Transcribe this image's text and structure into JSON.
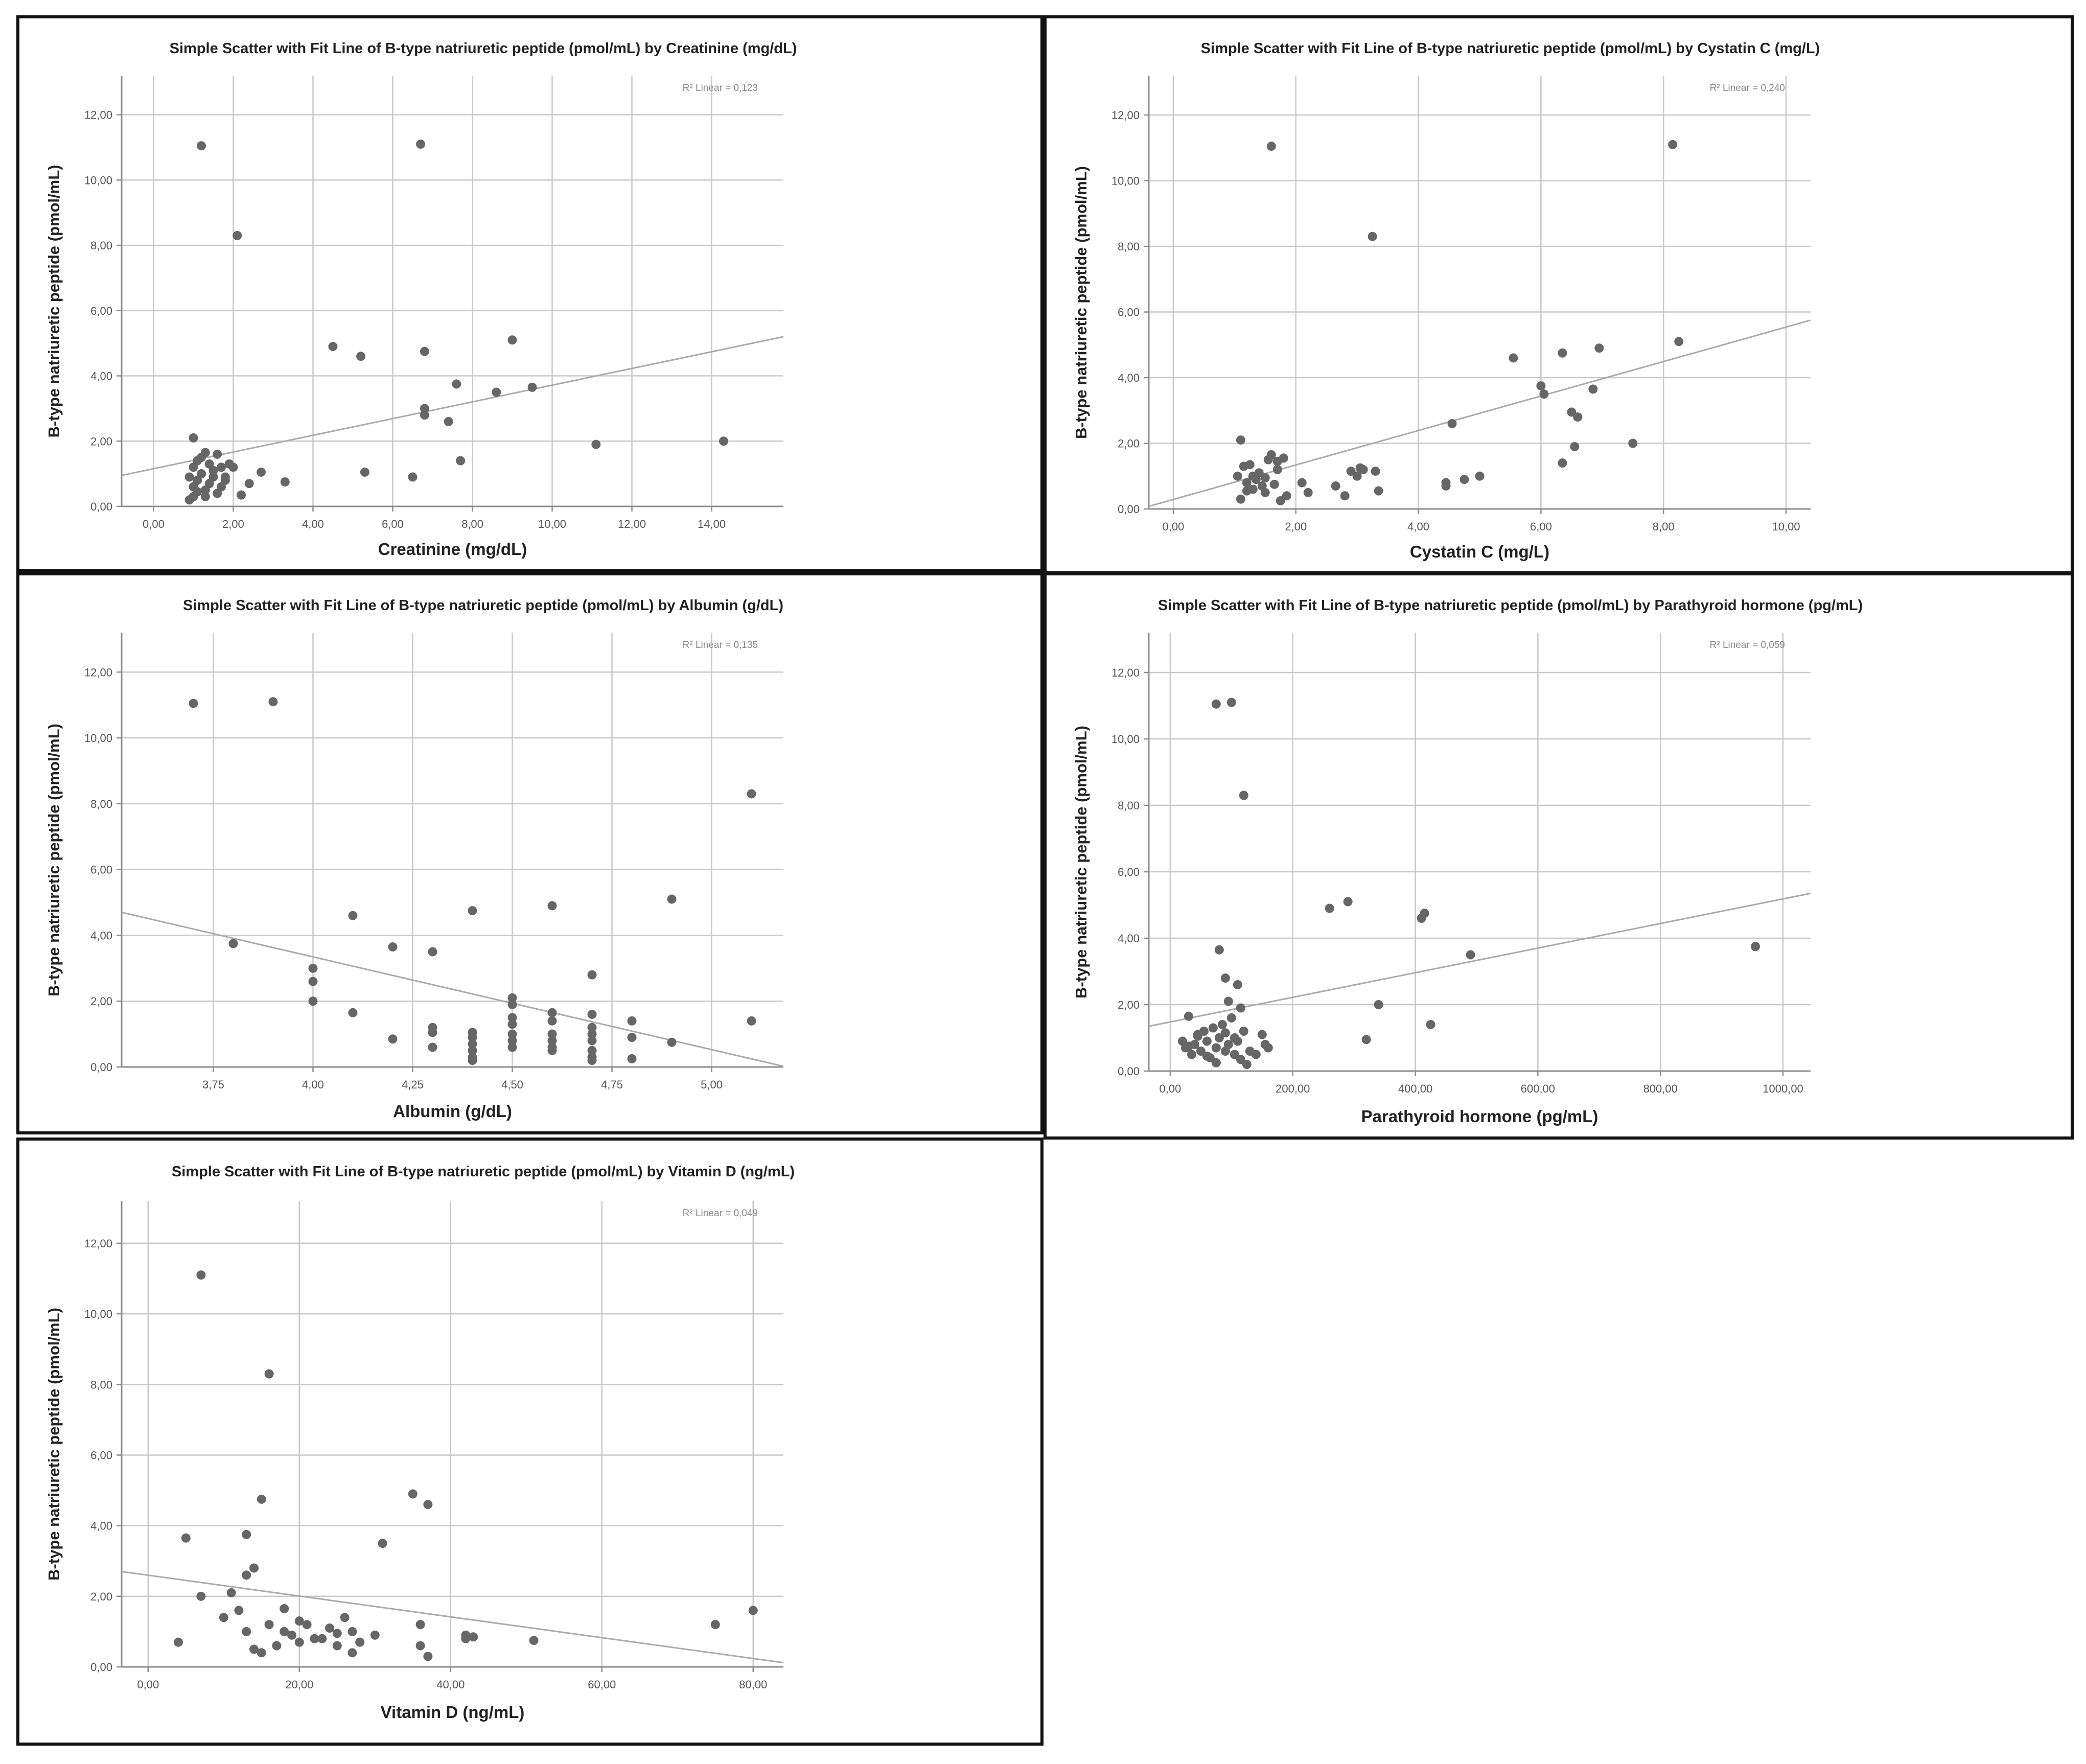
{
  "chart_data": [
    {
      "type": "scatter",
      "title": "Simple Scatter with Fit Line of B-type natriuretic peptide (pmol/mL) by Creatinine (mg/dL)",
      "xlabel": "Creatinine (mg/dL)",
      "ylabel": "B-type natriuretic peptide (pmol/mL)",
      "r2_label": "R² Linear = 0,123",
      "xlim": [
        -0.8,
        15.8
      ],
      "ylim": [
        0,
        13.2
      ],
      "xticks": [
        0,
        2,
        4,
        6,
        8,
        10,
        12,
        14
      ],
      "xtick_labels": [
        "0,00",
        "2,00",
        "4,00",
        "6,00",
        "8,00",
        "10,00",
        "12,00",
        "14,00"
      ],
      "yticks": [
        0,
        2,
        4,
        6,
        8,
        10,
        12
      ],
      "ytick_labels": [
        "0,00",
        "2,00",
        "4,00",
        "6,00",
        "8,00",
        "10,00",
        "12,00"
      ],
      "fit_line": [
        [
          -0.8,
          0.95
        ],
        [
          15.8,
          5.2
        ]
      ],
      "x": [
        1.2,
        2.1,
        6.7,
        1.0,
        4.5,
        5.2,
        6.8,
        9.0,
        7.6,
        6.8,
        6.8,
        8.6,
        9.5,
        7.4,
        7.7,
        5.3,
        6.5,
        11.1,
        14.3,
        2.0,
        2.2,
        2.4,
        2.7,
        3.3,
        0.9,
        1.0,
        1.1,
        1.2,
        1.3,
        1.4,
        1.5,
        1.6,
        1.7,
        1.8,
        1.9,
        1.0,
        1.1,
        1.2,
        1.3,
        1.4,
        1.5,
        1.6,
        1.7,
        1.8,
        0.9,
        1.0,
        1.1,
        1.2,
        1.3
      ],
      "y": [
        11.05,
        8.3,
        11.1,
        2.1,
        4.9,
        4.6,
        4.75,
        5.1,
        3.75,
        3.0,
        2.8,
        3.5,
        3.65,
        2.6,
        1.4,
        1.05,
        0.9,
        1.9,
        2.0,
        1.2,
        0.35,
        0.7,
        1.05,
        0.75,
        0.9,
        1.2,
        1.4,
        1.5,
        1.65,
        1.3,
        1.1,
        1.6,
        1.2,
        0.9,
        1.3,
        0.6,
        0.8,
        1.0,
        0.5,
        0.7,
        0.9,
        0.4,
        0.6,
        0.8,
        0.2,
        0.3,
        0.45,
        1.0,
        0.3
      ]
    },
    {
      "type": "scatter",
      "title": "Simple Scatter with Fit Line of B-type natriuretic peptide (pmol/mL) by Cystatin C (mg/L)",
      "xlabel": "Cystatin C (mg/L)",
      "ylabel": "B-type natriuretic peptide (pmol/mL)",
      "r2_label": "R² Linear = 0,240",
      "xlim": [
        -0.4,
        10.4
      ],
      "ylim": [
        0,
        13.2
      ],
      "xticks": [
        0,
        2,
        4,
        6,
        8,
        10
      ],
      "xtick_labels": [
        "0,00",
        "2,00",
        "4,00",
        "6,00",
        "8,00",
        "10,00"
      ],
      "yticks": [
        0,
        2,
        4,
        6,
        8,
        10,
        12
      ],
      "ytick_labels": [
        "0,00",
        "2,00",
        "4,00",
        "6,00",
        "8,00",
        "10,00",
        "12,00"
      ],
      "fit_line": [
        [
          -0.4,
          0.08
        ],
        [
          10.4,
          5.75
        ]
      ],
      "x": [
        1.6,
        8.15,
        3.25,
        5.55,
        6.35,
        6.95,
        8.25,
        6.0,
        6.05,
        6.85,
        6.6,
        6.5,
        7.5,
        6.55,
        6.35,
        4.55,
        4.45,
        4.45,
        4.75,
        5.0,
        1.1,
        1.05,
        1.15,
        1.2,
        1.25,
        1.3,
        1.35,
        1.4,
        1.45,
        1.5,
        1.55,
        1.6,
        1.65,
        1.7,
        1.75,
        1.8,
        1.85,
        1.1,
        1.3,
        1.5,
        1.7,
        1.2,
        2.1,
        2.2,
        2.65,
        2.8,
        2.9,
        3.0,
        3.05,
        3.1,
        3.3,
        3.35
      ],
      "y": [
        11.05,
        11.1,
        8.3,
        4.6,
        4.75,
        4.9,
        5.1,
        3.75,
        3.5,
        3.65,
        2.8,
        2.95,
        2.0,
        1.9,
        1.4,
        2.6,
        0.7,
        0.8,
        0.9,
        1.0,
        2.1,
        1.0,
        1.3,
        0.8,
        1.35,
        0.6,
        0.9,
        1.1,
        0.7,
        0.95,
        1.5,
        1.65,
        0.75,
        1.2,
        0.25,
        1.55,
        0.4,
        0.3,
        1.0,
        0.5,
        1.45,
        0.55,
        0.8,
        0.5,
        0.7,
        0.4,
        1.15,
        1.0,
        1.25,
        1.2,
        1.15,
        0.55
      ]
    },
    {
      "type": "scatter",
      "title": "Simple Scatter with Fit Line of B-type natriuretic peptide (pmol/mL) by Albumin (g/dL)",
      "xlabel": "Albumin (g/dL)",
      "ylabel": "B-type natriuretic peptide (pmol/mL)",
      "r2_label": "R² Linear = 0,135",
      "xlim": [
        3.52,
        5.18
      ],
      "ylim": [
        0,
        13.2
      ],
      "xticks": [
        3.75,
        4.0,
        4.25,
        4.5,
        4.75,
        5.0
      ],
      "xtick_labels": [
        "3,75",
        "4,00",
        "4,25",
        "4,50",
        "4,75",
        "5,00"
      ],
      "yticks": [
        0,
        2,
        4,
        6,
        8,
        10,
        12
      ],
      "ytick_labels": [
        "0,00",
        "2,00",
        "4,00",
        "6,00",
        "8,00",
        "10,00",
        "12,00"
      ],
      "fit_line": [
        [
          3.52,
          4.7
        ],
        [
          5.18,
          0.02
        ]
      ],
      "x": [
        3.7,
        3.9,
        5.1,
        3.8,
        4.1,
        4.4,
        4.6,
        4.9,
        4.2,
        4.3,
        4.0,
        4.0,
        4.0,
        4.1,
        4.2,
        4.3,
        4.3,
        4.3,
        4.4,
        4.4,
        4.4,
        4.4,
        4.4,
        4.4,
        4.5,
        4.5,
        4.5,
        4.5,
        4.5,
        4.5,
        4.5,
        4.6,
        4.6,
        4.6,
        4.6,
        4.6,
        4.6,
        4.7,
        4.7,
        4.7,
        4.7,
        4.7,
        4.7,
        4.7,
        4.7,
        4.8,
        4.8,
        4.8,
        4.9,
        5.1
      ],
      "y": [
        11.05,
        11.1,
        8.3,
        3.75,
        4.6,
        4.75,
        4.9,
        5.1,
        3.65,
        3.5,
        3.0,
        2.6,
        2.0,
        1.65,
        0.85,
        1.2,
        1.05,
        0.6,
        1.05,
        0.9,
        0.7,
        0.5,
        0.3,
        0.2,
        2.1,
        1.9,
        1.5,
        1.3,
        1.0,
        0.8,
        0.6,
        1.65,
        1.4,
        1.0,
        0.8,
        0.6,
        0.5,
        2.8,
        1.6,
        1.2,
        1.0,
        0.8,
        0.5,
        0.3,
        0.2,
        1.4,
        0.9,
        0.25,
        0.75,
        1.4
      ]
    },
    {
      "type": "scatter",
      "title": "Simple Scatter with Fit Line of B-type natriuretic peptide (pmol/mL) by Parathyroid hormone (pg/mL)",
      "xlabel": "Parathyroid hormone (pg/mL)",
      "ylabel": "B-type natriuretic peptide (pmol/mL)",
      "r2_label": "R² Linear = 0,059",
      "xlim": [
        -35,
        1045
      ],
      "ylim": [
        0,
        13.2
      ],
      "xticks": [
        0,
        200,
        400,
        600,
        800,
        1000
      ],
      "xtick_labels": [
        "0,00",
        "200,00",
        "400,00",
        "600,00",
        "800,00",
        "1000,00"
      ],
      "yticks": [
        0,
        2,
        4,
        6,
        8,
        10,
        12
      ],
      "ytick_labels": [
        "0,00",
        "2,00",
        "4,00",
        "6,00",
        "8,00",
        "10,00",
        "12,00"
      ],
      "fit_line": [
        [
          -35,
          1.35
        ],
        [
          1045,
          5.35
        ]
      ],
      "x": [
        75,
        100,
        120,
        260,
        290,
        410,
        415,
        955,
        490,
        80,
        90,
        95,
        110,
        115,
        340,
        320,
        425,
        20,
        25,
        30,
        35,
        40,
        45,
        50,
        55,
        60,
        65,
        70,
        75,
        80,
        85,
        90,
        95,
        100,
        105,
        110,
        115,
        120,
        125,
        130,
        140,
        150,
        155,
        160,
        30,
        45,
        60,
        75,
        90,
        105
      ],
      "y": [
        11.05,
        11.1,
        8.3,
        4.9,
        5.1,
        4.6,
        4.75,
        3.75,
        3.5,
        3.65,
        2.8,
        2.1,
        2.6,
        1.9,
        2.0,
        0.95,
        1.4,
        0.9,
        0.7,
        1.65,
        0.5,
        0.8,
        1.1,
        0.6,
        1.2,
        0.9,
        0.4,
        1.3,
        0.7,
        1.0,
        1.4,
        0.6,
        0.8,
        1.6,
        0.5,
        0.9,
        0.35,
        1.2,
        0.2,
        0.6,
        0.5,
        1.1,
        0.8,
        0.7,
        0.75,
        1.05,
        0.45,
        0.25,
        1.15,
        1.0
      ]
    },
    {
      "type": "scatter",
      "title": "Simple Scatter with Fit Line of B-type natriuretic peptide (pmol/mL) by Vitamin D (ng/mL)",
      "xlabel": "Vitamin D (ng/mL)",
      "ylabel": "B-type natriuretic peptide (pmol/mL)",
      "r2_label": "R² Linear = 0,049",
      "xlim": [
        -3.5,
        84
      ],
      "ylim": [
        0,
        13.2
      ],
      "xticks": [
        0,
        20,
        40,
        60,
        80
      ],
      "xtick_labels": [
        "0,00",
        "20,00",
        "40,00",
        "60,00",
        "80,00"
      ],
      "yticks": [
        0,
        2,
        4,
        6,
        8,
        10,
        12
      ],
      "ytick_labels": [
        "0,00",
        "2,00",
        "4,00",
        "6,00",
        "8,00",
        "10,00",
        "12,00"
      ],
      "fit_line": [
        [
          -3.5,
          2.7
        ],
        [
          84,
          0.12
        ]
      ],
      "x": [
        7,
        16,
        35,
        37,
        15,
        5,
        31,
        13,
        14,
        13,
        7,
        11,
        12,
        4,
        10,
        13,
        14,
        15,
        16,
        17,
        18,
        19,
        20,
        21,
        22,
        23,
        24,
        25,
        26,
        27,
        28,
        30,
        36,
        36,
        37,
        42,
        42,
        43,
        51,
        75,
        80,
        18,
        20,
        25,
        27
      ],
      "y": [
        11.1,
        8.3,
        4.9,
        4.6,
        4.75,
        3.65,
        3.5,
        3.75,
        2.8,
        2.6,
        2.0,
        2.1,
        1.6,
        0.7,
        1.4,
        1.0,
        0.5,
        0.4,
        1.2,
        0.6,
        1.0,
        0.9,
        1.3,
        1.2,
        0.8,
        0.8,
        1.1,
        0.6,
        1.4,
        1.0,
        0.7,
        0.9,
        1.2,
        0.6,
        0.3,
        0.9,
        0.8,
        0.85,
        0.75,
        1.2,
        1.6,
        1.65,
        0.7,
        0.95,
        0.4
      ]
    }
  ],
  "colors": {
    "point": "#666666",
    "fit_line": "#aaaaaa",
    "grid": "#c8c8c8",
    "axis": "#8c8c8c",
    "border": "#111111"
  }
}
